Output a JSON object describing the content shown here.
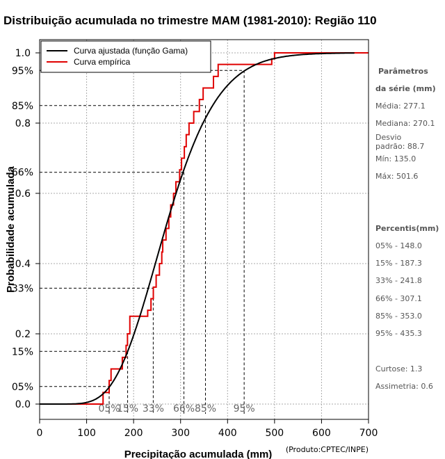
{
  "chart_data": {
    "type": "line",
    "title": "Distribuição acumulada no trimestre MAM (1981-2010): Região 110",
    "xlabel": "Precipitação acumulada (mm)",
    "ylabel": "Probabilidade acumulada",
    "credit": "(Produto:CPTEC/INPE)",
    "xlim": [
      0,
      700
    ],
    "ylim": [
      0,
      1
    ],
    "x_ticks": [
      0,
      100,
      200,
      300,
      400,
      500,
      600,
      700
    ],
    "y_ticks": [
      "0.0",
      "0.2",
      "0.4",
      "0.6",
      "0.8",
      "1.0"
    ],
    "legend_position": "top-left",
    "series": [
      {
        "name": "Curva ajustada (função Gama)",
        "color": "#000000",
        "distribution": "gamma",
        "mean": 277.1,
        "sd": 88.7
      },
      {
        "name": "Curva empírica",
        "color": "#e00000",
        "steps_x": [
          135,
          148,
          152,
          176,
          184,
          187,
          192,
          230,
          237,
          242,
          248,
          255,
          260,
          262,
          269,
          275,
          279,
          285,
          290,
          298,
          302,
          308,
          312,
          318,
          328,
          340,
          348,
          370,
          380,
          435,
          494,
          500
        ],
        "steps_y": [
          0.033,
          0.067,
          0.1,
          0.133,
          0.167,
          0.2,
          0.25,
          0.267,
          0.3,
          0.333,
          0.367,
          0.4,
          0.433,
          0.467,
          0.5,
          0.533,
          0.567,
          0.6,
          0.633,
          0.667,
          0.7,
          0.733,
          0.767,
          0.8,
          0.833,
          0.867,
          0.9,
          0.933,
          0.967,
          0.967,
          0.983,
          1.0
        ]
      }
    ],
    "percentile_refs": [
      {
        "label": "05%",
        "p": 0.05,
        "x": 148.0
      },
      {
        "label": "15%",
        "p": 0.15,
        "x": 187.3
      },
      {
        "label": "33%",
        "p": 0.33,
        "x": 241.8
      },
      {
        "label": "66%",
        "p": 0.66,
        "x": 307.1
      },
      {
        "label": "85%",
        "p": 0.85,
        "x": 353.0
      },
      {
        "label": "95%",
        "p": 0.95,
        "x": 435.3
      }
    ]
  },
  "side_panel": {
    "params_title_1": "Parâmetros",
    "params_title_2": "da série (mm)",
    "media": "Média: 277.1",
    "mediana": "Mediana: 270.1",
    "desvio_1": "Desvio",
    "desvio_2": "padrão: 88.7",
    "min": "Mín: 135.0",
    "max": "Máx: 501.6",
    "percentis_title": "Percentis(mm)",
    "p05": "05% - 148.0",
    "p15": "15% - 187.3",
    "p33": "33% - 241.8",
    "p66": "66% - 307.1",
    "p85": "85% - 353.0",
    "p95": "95% - 435.3",
    "curtose": "Curtose: 1.3",
    "assimetria": "Assimetria: 0.6"
  }
}
